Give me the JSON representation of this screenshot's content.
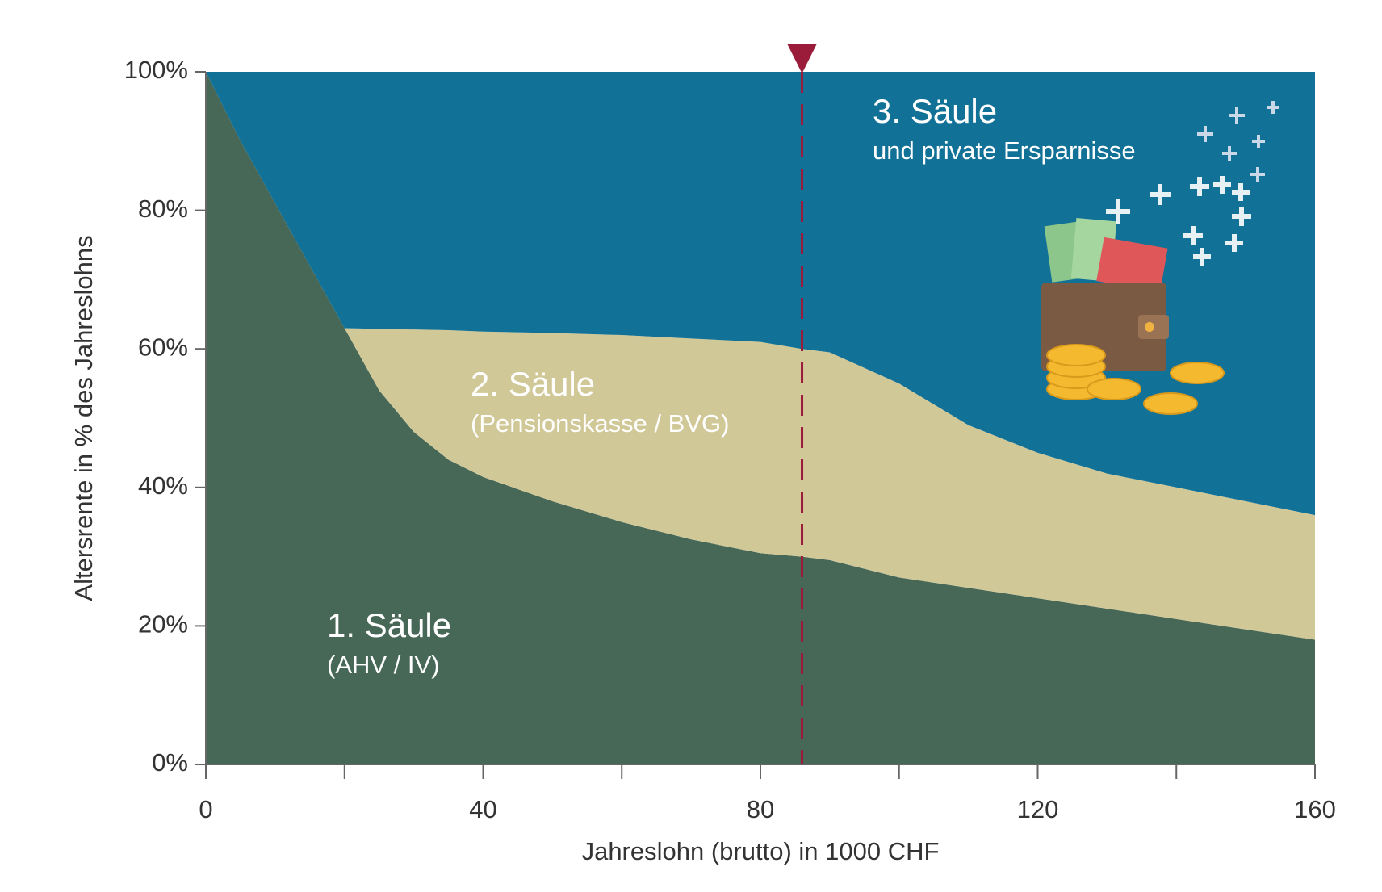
{
  "chart_data": {
    "type": "stacked_area",
    "x_label": "Jahreslohn (brutto) in 1000 CHF",
    "y_label": "Altersrente in % des Jahreslohns",
    "x": [
      0,
      5,
      10,
      15,
      20,
      25,
      30,
      35,
      40,
      50,
      60,
      70,
      80,
      86,
      90,
      100,
      110,
      120,
      130,
      140,
      150,
      160
    ],
    "series": [
      {
        "name": "1. Säule",
        "sublabel": "(AHV / IV)",
        "color": "#476857",
        "values": [
          100,
          90,
          81,
          72,
          63,
          54,
          48,
          44,
          41.5,
          38,
          35,
          32.5,
          30.5,
          30,
          29.5,
          27,
          25.5,
          24,
          22.5,
          21,
          19.5,
          18
        ]
      },
      {
        "name": "2. Säule",
        "sublabel": "(Pensionskasse / BVG)",
        "color": "#d1c898",
        "values": [
          0,
          0,
          0,
          0,
          0,
          8.9,
          14.8,
          18.7,
          21,
          24.3,
          27,
          29,
          30.5,
          30,
          30,
          28,
          23.5,
          21,
          19.5,
          19,
          18.5,
          18
        ]
      },
      {
        "name": "3. Säule",
        "sublabel": "und private Ersparnisse",
        "color": "#127196",
        "values": [
          0,
          10,
          19,
          28,
          37,
          37.1,
          37.2,
          37.3,
          37.5,
          37.7,
          38,
          38.5,
          39,
          40,
          40.5,
          45,
          51,
          55,
          58,
          60,
          62,
          64
        ]
      }
    ],
    "xlim": [
      0,
      160
    ],
    "xticks": [
      0,
      40,
      80,
      120,
      160
    ],
    "xminor_ticks": [
      20,
      60,
      100,
      140
    ],
    "ylim": [
      0,
      100
    ],
    "yticks": [
      {
        "value": 0,
        "label": "0%"
      },
      {
        "value": 20,
        "label": "20%"
      },
      {
        "value": 40,
        "label": "40%"
      },
      {
        "value": 60,
        "label": "60%"
      },
      {
        "value": 80,
        "label": "80%"
      },
      {
        "value": 100,
        "label": "100%"
      }
    ],
    "marker_x": 86,
    "marker_color": "#9b1b3a"
  }
}
